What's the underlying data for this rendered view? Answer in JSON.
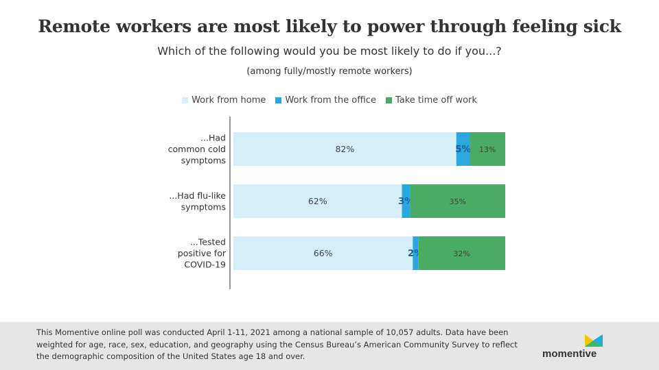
{
  "header": {
    "title": "Remote workers are most likely to power through feeling sick",
    "subtitle": "Which of the following would you be most likely to do if you...?",
    "note": "(among fully/mostly remote workers)"
  },
  "colors": {
    "work_from_home": "#d6edfa",
    "work_from_office": "#29a8e0",
    "take_time_off": "#4aab64"
  },
  "chart_data": {
    "type": "bar",
    "orientation": "horizontal",
    "stacked": true,
    "title": "",
    "xlabel": "",
    "ylabel": "",
    "xlim": [
      0,
      100
    ],
    "legend_position": "top",
    "grid": false,
    "categories": [
      [
        "...Had",
        "common cold",
        "symptoms"
      ],
      [
        "...Had flu-like",
        "symptoms"
      ],
      [
        "...Tested",
        "positive for",
        "COVID-19"
      ]
    ],
    "series": [
      {
        "name": "Work from home",
        "values": [
          82,
          62,
          66
        ],
        "labels": [
          "82%",
          "62%",
          "66%"
        ]
      },
      {
        "name": "Work from the office",
        "values": [
          5,
          3,
          2
        ],
        "labels": [
          "5%",
          "3%",
          "2%"
        ]
      },
      {
        "name": "Take time off work",
        "values": [
          13,
          35,
          32
        ],
        "labels": [
          "13%",
          "35%",
          "32%"
        ]
      }
    ]
  },
  "footer": {
    "note": "This Momentive online poll was conducted April 1-11, 2021 among a national sample of 10,057 adults. Data have been weighted for age, race, sex, education, and geography using the Census Bureau’s American Community Survey to reflect the demographic composition of the United States age 18 and over.",
    "logo_text": "momentive"
  }
}
